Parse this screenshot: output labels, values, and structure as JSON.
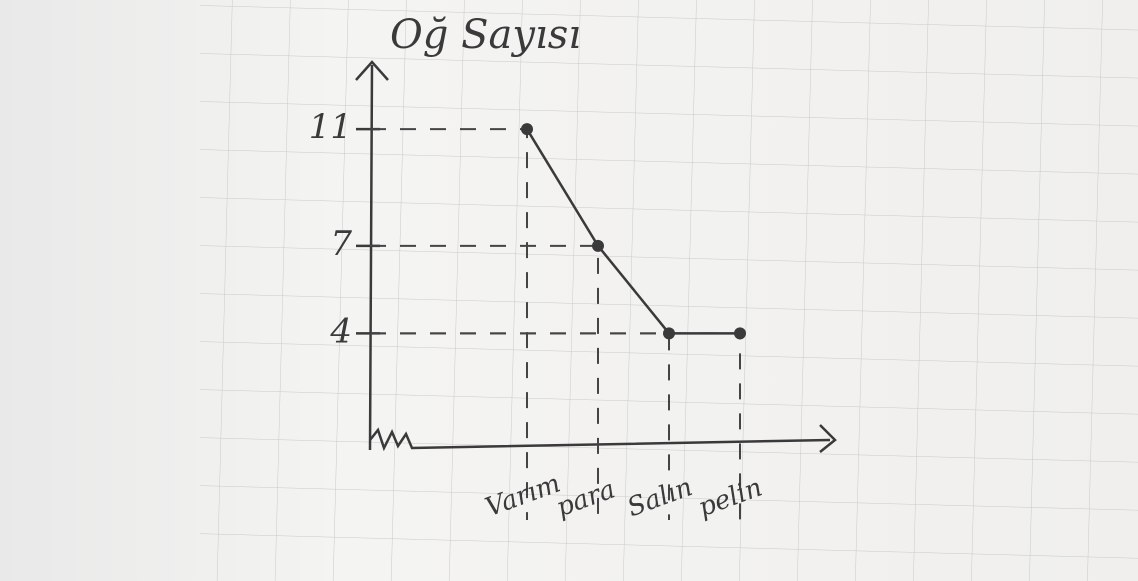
{
  "chart_data": {
    "type": "line",
    "title": "Oğ Sayısı",
    "categories": [
      "Varım",
      "para",
      "Salın",
      "pelin"
    ],
    "values": [
      11,
      7,
      4,
      4
    ],
    "color": "#3a3a3a",
    "ylim": [
      0,
      12
    ],
    "yticks": [
      4,
      7,
      11
    ]
  }
}
